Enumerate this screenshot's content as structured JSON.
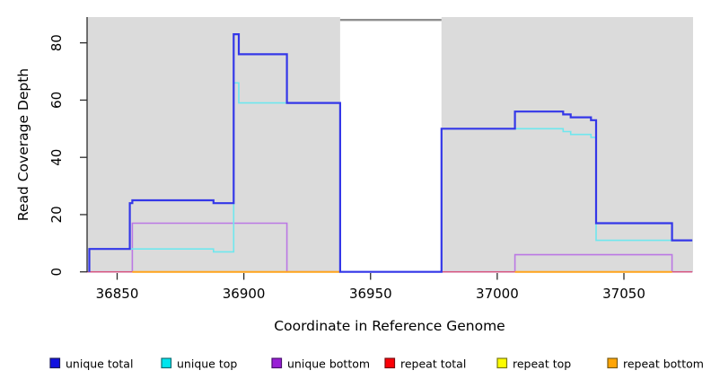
{
  "figure": {
    "x_axis_title": "Coordinate in Reference Genome",
    "y_axis_title": "Read Coverage Depth"
  },
  "chart_data": {
    "type": "line",
    "subtype": "step-coverage-plot",
    "title": "",
    "xlabel": "Coordinate in Reference Genome",
    "ylabel": "Read Coverage Depth",
    "xlim": [
      36838,
      37077
    ],
    "ylim": [
      0,
      89
    ],
    "x_ticks": [
      36850,
      36900,
      36950,
      37000,
      37050
    ],
    "y_ticks": [
      0,
      20,
      40,
      60,
      80
    ],
    "grid": false,
    "plot_background_color": "#dbdbdb",
    "coverage_gap_region": {
      "x1": 36938,
      "x2": 36978,
      "color": "#ffffff"
    },
    "gap_top_marker": {
      "x1": 36938,
      "x2": 36978,
      "y": 88,
      "color": "#8f8f8f"
    },
    "legend_position": "bottom",
    "draw_order": [
      "unique bottom",
      "repeat total",
      "repeat top",
      "repeat bottom",
      "unique top",
      "unique total"
    ],
    "series": [
      {
        "name": "unique total",
        "line_color": "#3437e8",
        "line_width": 2.2,
        "legend_fill": "#1212e0",
        "legend_border": "#1b1b5e",
        "segments": [
          [
            [
              36839,
              0
            ],
            [
              36839,
              8
            ],
            [
              36855,
              24
            ],
            [
              36856,
              25
            ],
            [
              36888,
              24
            ],
            [
              36896,
              83
            ],
            [
              36898,
              76
            ],
            [
              36917,
              59
            ],
            [
              36938,
              0
            ],
            [
              36978,
              50
            ],
            [
              37007,
              56
            ],
            [
              37026,
              55
            ],
            [
              37029,
              54
            ],
            [
              37037,
              53
            ],
            [
              37039,
              17
            ],
            [
              37069,
              11
            ],
            [
              37077,
              11
            ]
          ]
        ]
      },
      {
        "name": "unique top",
        "line_color": "#6fe7ee",
        "line_width": 1.6,
        "legend_fill": "#00e5ee",
        "legend_border": "#0f6e74",
        "segments": [
          [
            [
              36839,
              0
            ],
            [
              36839,
              8
            ],
            [
              36888,
              7
            ],
            [
              36896,
              66
            ],
            [
              36898,
              59
            ],
            [
              36938,
              0
            ],
            [
              36978,
              50
            ],
            [
              37026,
              49
            ],
            [
              37029,
              48
            ],
            [
              37037,
              47
            ],
            [
              37039,
              11
            ],
            [
              37077,
              11
            ]
          ]
        ]
      },
      {
        "name": "unique bottom",
        "line_color": "#bb78e4",
        "line_width": 1.6,
        "legend_fill": "#991fd6",
        "legend_border": "#4a1070",
        "segments": [
          [
            [
              36838,
              0
            ],
            [
              36856,
              17
            ],
            [
              36917,
              0
            ],
            [
              37007,
              6
            ],
            [
              37069,
              0
            ],
            [
              37077,
              0
            ]
          ]
        ]
      },
      {
        "name": "repeat total",
        "line_color": "#d8567b",
        "line_width": 1.4,
        "legend_fill": "#fb0007",
        "legend_border": "#7a0c10",
        "segments": [
          [
            [
              36838,
              0
            ],
            [
              37077,
              0
            ]
          ]
        ]
      },
      {
        "name": "repeat top",
        "line_color": "#ffff4d",
        "line_width": 1.4,
        "legend_fill": "#fcfc00",
        "legend_border": "#7a7a10",
        "segments": [
          [
            [
              36856,
              0
            ],
            [
              36938,
              0
            ]
          ],
          [
            [
              37007,
              0
            ],
            [
              37069,
              0
            ]
          ]
        ]
      },
      {
        "name": "repeat bottom",
        "line_color": "#ffa41c",
        "line_width": 2.0,
        "legend_fill": "#ffa505",
        "legend_border": "#7a5a10",
        "segments": [
          [
            [
              36856,
              0
            ],
            [
              36938,
              0
            ]
          ],
          [
            [
              37007,
              0
            ],
            [
              37069,
              0
            ]
          ]
        ]
      }
    ]
  }
}
